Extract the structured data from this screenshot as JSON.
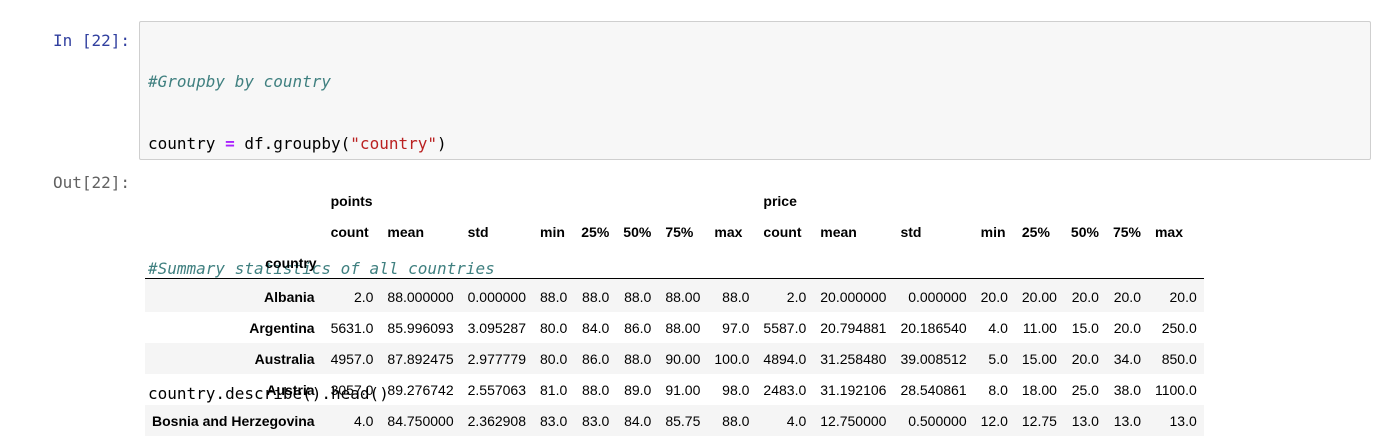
{
  "cell": {
    "in_prompt": "In [22]:",
    "out_prompt": "Out[22]:",
    "code": {
      "line1": "#Groupby by country",
      "line2_a": "country ",
      "line2_op": "=",
      "line2_b": " df.groupby(",
      "line2_str": "\"country\"",
      "line2_c": ")",
      "line4": "#Summary statistics of all countries",
      "line6": "country.describe().head()"
    }
  },
  "table": {
    "top_headers": [
      "points",
      "price"
    ],
    "sub_headers": [
      "count",
      "mean",
      "std",
      "min",
      "25%",
      "50%",
      "75%",
      "max",
      "count",
      "mean",
      "std",
      "min",
      "25%",
      "50%",
      "75%",
      "max"
    ],
    "index_name": "country",
    "rows": [
      {
        "label": "Albania",
        "values": [
          "2.0",
          "88.000000",
          "0.000000",
          "88.0",
          "88.0",
          "88.0",
          "88.00",
          "88.0",
          "2.0",
          "20.000000",
          "0.000000",
          "20.0",
          "20.00",
          "20.0",
          "20.0",
          "20.0"
        ]
      },
      {
        "label": "Argentina",
        "values": [
          "5631.0",
          "85.996093",
          "3.095287",
          "80.0",
          "84.0",
          "86.0",
          "88.00",
          "97.0",
          "5587.0",
          "20.794881",
          "20.186540",
          "4.0",
          "11.00",
          "15.0",
          "20.0",
          "250.0"
        ]
      },
      {
        "label": "Australia",
        "values": [
          "4957.0",
          "87.892475",
          "2.977779",
          "80.0",
          "86.0",
          "88.0",
          "90.00",
          "100.0",
          "4894.0",
          "31.258480",
          "39.008512",
          "5.0",
          "15.00",
          "20.0",
          "34.0",
          "850.0"
        ]
      },
      {
        "label": "Austria",
        "values": [
          "3057.0",
          "89.276742",
          "2.557063",
          "81.0",
          "88.0",
          "89.0",
          "91.00",
          "98.0",
          "2483.0",
          "31.192106",
          "28.540861",
          "8.0",
          "18.00",
          "25.0",
          "38.0",
          "1100.0"
        ]
      },
      {
        "label": "Bosnia and Herzegovina",
        "values": [
          "4.0",
          "84.750000",
          "2.362908",
          "83.0",
          "83.0",
          "84.0",
          "85.75",
          "88.0",
          "4.0",
          "12.750000",
          "0.500000",
          "12.0",
          "12.75",
          "13.0",
          "13.0",
          "13.0"
        ]
      }
    ]
  }
}
